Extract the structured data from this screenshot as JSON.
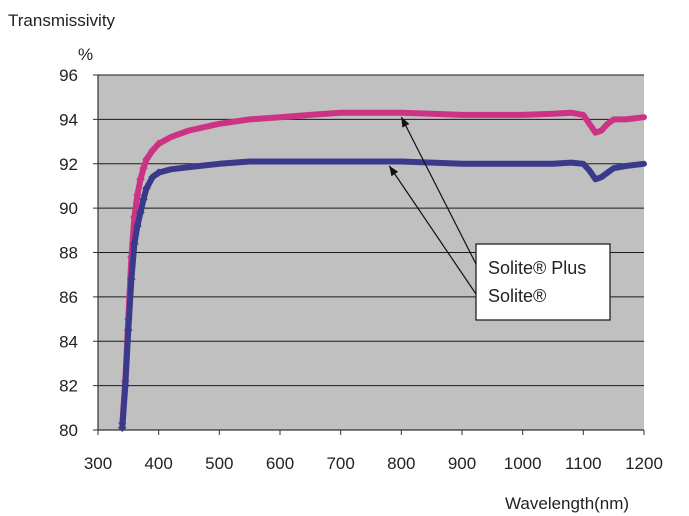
{
  "chart_data": {
    "type": "line",
    "ylabel": "Transmissivity",
    "yunit": "%",
    "xlabel": "Wavelength(nm)",
    "xlim": [
      300,
      1200
    ],
    "ylim": [
      80,
      96
    ],
    "xticks": [
      300,
      400,
      500,
      600,
      700,
      800,
      900,
      1000,
      1100,
      1200
    ],
    "yticks": [
      80,
      82,
      84,
      86,
      88,
      90,
      92,
      94,
      96
    ],
    "grid": true,
    "plot_background": "#c0c0c0",
    "series": [
      {
        "name": "Solite® Plus",
        "color": "#cc3385",
        "x": [
          340,
          345,
          350,
          355,
          360,
          365,
          370,
          375,
          380,
          390,
          400,
          420,
          450,
          500,
          550,
          600,
          650,
          700,
          750,
          800,
          850,
          900,
          950,
          1000,
          1050,
          1080,
          1100,
          1110,
          1120,
          1130,
          1140,
          1150,
          1170,
          1200
        ],
        "values": [
          80.3,
          82.2,
          85.0,
          87.8,
          89.6,
          90.6,
          91.3,
          91.8,
          92.2,
          92.6,
          92.9,
          93.2,
          93.5,
          93.8,
          94.0,
          94.1,
          94.2,
          94.3,
          94.3,
          94.3,
          94.25,
          94.2,
          94.2,
          94.2,
          94.25,
          94.3,
          94.2,
          93.8,
          93.4,
          93.5,
          93.8,
          94.0,
          94.0,
          94.1
        ]
      },
      {
        "name": "Solite®",
        "color": "#3a3a8c",
        "x": [
          340,
          345,
          350,
          355,
          360,
          365,
          370,
          375,
          380,
          390,
          400,
          420,
          450,
          500,
          550,
          600,
          650,
          700,
          750,
          800,
          850,
          900,
          950,
          1000,
          1050,
          1080,
          1100,
          1110,
          1120,
          1130,
          1140,
          1150,
          1170,
          1200
        ],
        "values": [
          80.1,
          82.0,
          84.5,
          86.8,
          88.4,
          89.2,
          89.8,
          90.4,
          90.9,
          91.4,
          91.6,
          91.75,
          91.85,
          92.0,
          92.1,
          92.1,
          92.1,
          92.1,
          92.1,
          92.1,
          92.05,
          92.0,
          92.0,
          92.0,
          92.0,
          92.05,
          92.0,
          91.7,
          91.3,
          91.4,
          91.6,
          91.8,
          91.9,
          92.0
        ]
      }
    ],
    "annotation": {
      "labels": [
        "Solite® Plus",
        "Solite®"
      ],
      "arrow_targets": [
        {
          "series": 0,
          "x": 800,
          "y": 94.2
        },
        {
          "series": 1,
          "x": 780,
          "y": 92.0
        }
      ]
    }
  }
}
